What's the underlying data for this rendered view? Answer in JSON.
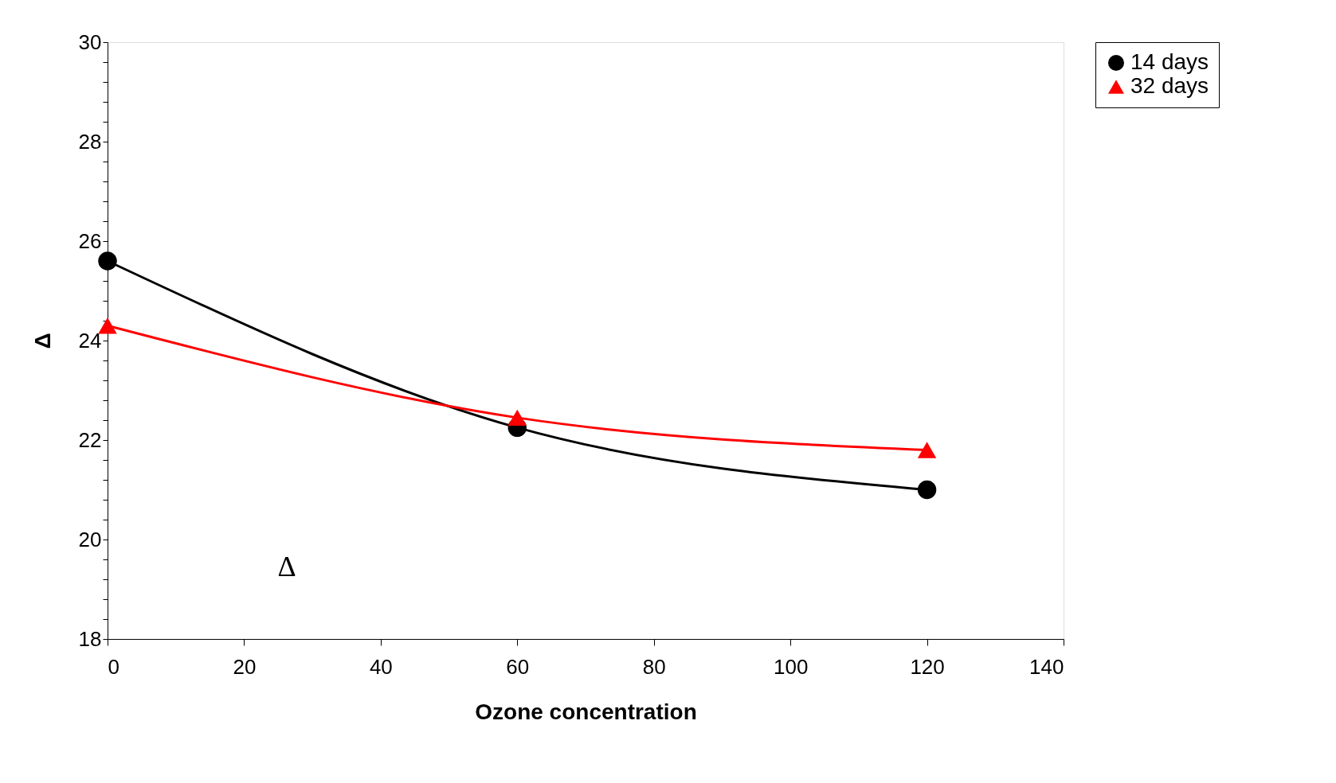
{
  "chart_data": {
    "type": "line",
    "xlabel": "Ozone concentration",
    "ylabel": "Δ",
    "x": [
      0,
      60,
      120
    ],
    "series": [
      {
        "name": "14 days",
        "color": "#000000",
        "values": [
          25.6,
          22.25,
          21.0
        ],
        "marker": "circle"
      },
      {
        "name": "32 days",
        "color": "#ff0000",
        "values": [
          24.3,
          22.45,
          21.8
        ],
        "marker": "triangle"
      }
    ],
    "xlim": [
      0,
      140
    ],
    "xticks": [
      0,
      20,
      40,
      60,
      80,
      100,
      120,
      140
    ],
    "ylim": [
      18,
      30
    ],
    "yticks": [
      18,
      {
        "value": 18.4,
        "label": null
      },
      {
        "value": 18.8,
        "label": null
      },
      {
        "value": 19.2,
        "label": null
      },
      {
        "value": 19.6,
        "label": null
      },
      20,
      {
        "value": 20.4,
        "label": null
      },
      {
        "value": 20.8,
        "label": null
      },
      {
        "value": 21.2,
        "label": null
      },
      {
        "value": 21.6,
        "label": null
      },
      22,
      {
        "value": 22.4,
        "label": null
      },
      {
        "value": 22.8,
        "label": null
      },
      {
        "value": 23.2,
        "label": null
      },
      {
        "value": 23.6,
        "label": null
      },
      24,
      {
        "value": 24.4,
        "label": null
      },
      {
        "value": 24.8,
        "label": null
      },
      {
        "value": 25.2,
        "label": null
      },
      {
        "value": 25.6,
        "label": null
      },
      26,
      {
        "value": 26.4,
        "label": null
      },
      {
        "value": 26.8,
        "label": null
      },
      {
        "value": 27.2,
        "label": null
      },
      {
        "value": 27.6,
        "label": null
      },
      28,
      {
        "value": 28.4,
        "label": null
      },
      {
        "value": 28.8,
        "label": null
      },
      {
        "value": 29.2,
        "label": null
      },
      {
        "value": 29.6,
        "label": null
      },
      30
    ],
    "annotations": [
      "Δ"
    ],
    "grid": false,
    "legend": "right",
    "line_style": "solid"
  }
}
